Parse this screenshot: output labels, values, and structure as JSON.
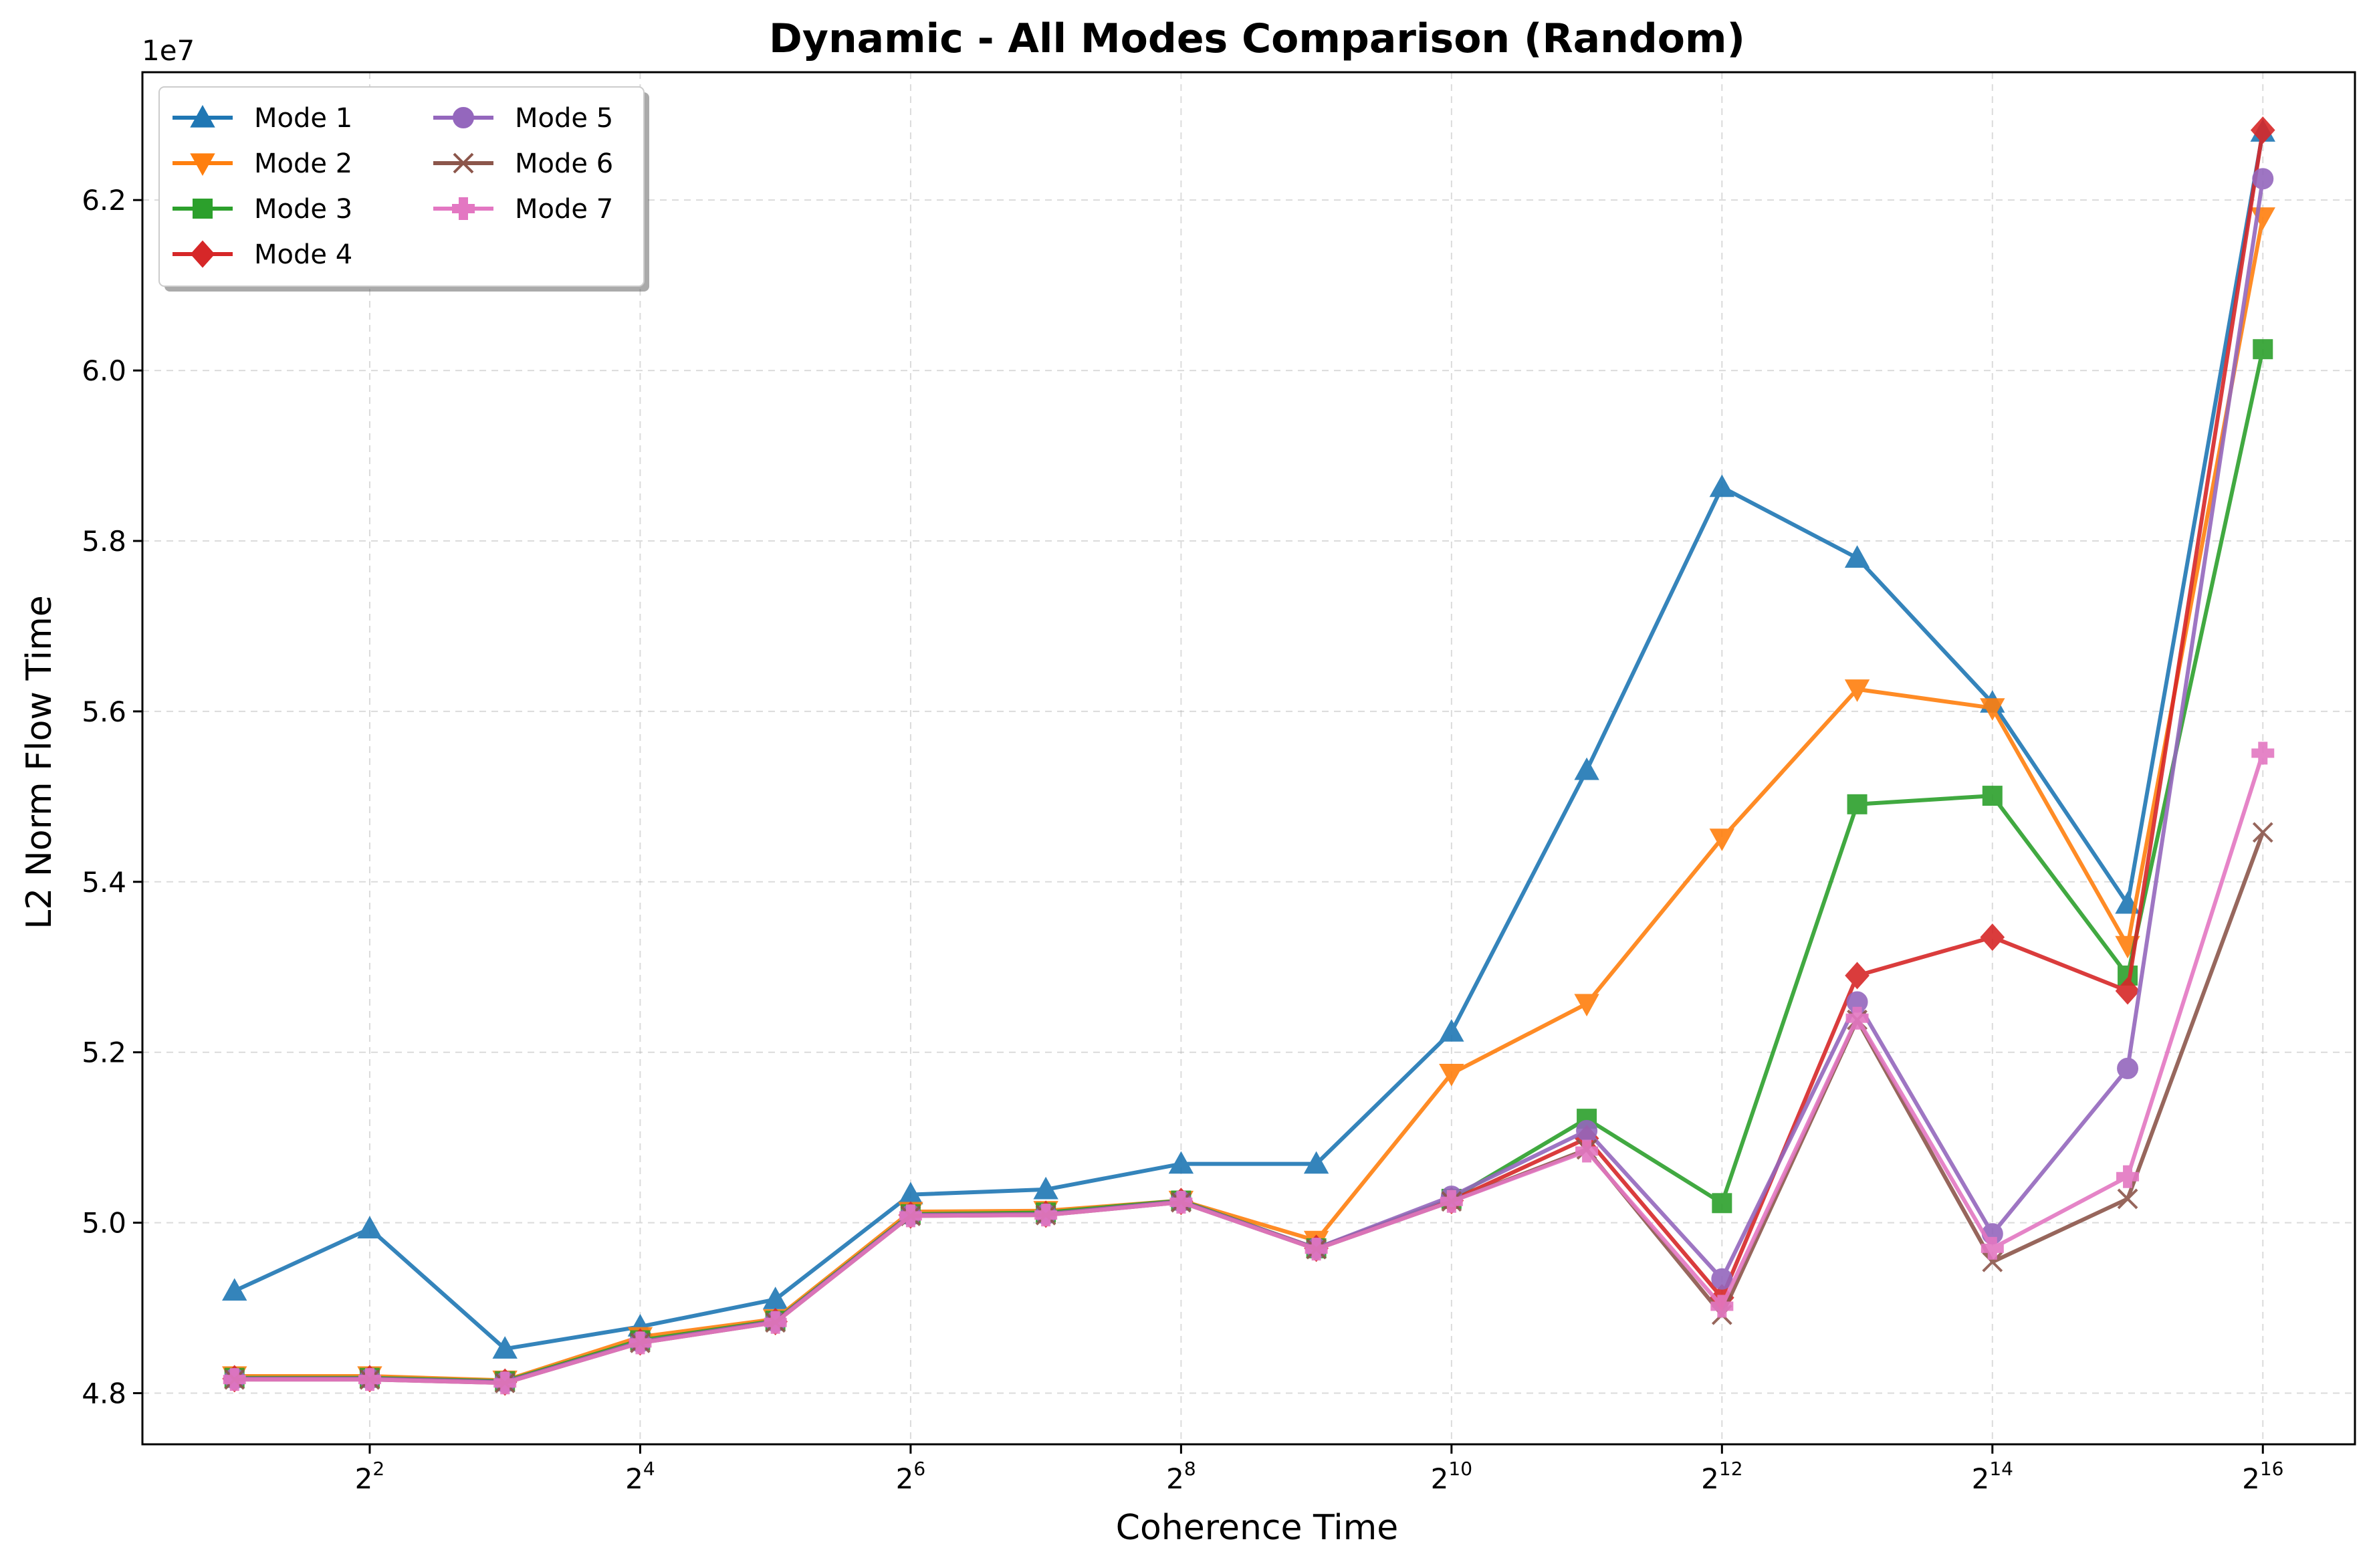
{
  "chart_data": {
    "type": "line",
    "title": "Dynamic - All Modes Comparison (Random)",
    "xlabel": "Coherence Time",
    "ylabel": "L2 Norm Flow Time",
    "y_offset_label": "1e7",
    "x_scale": "log2",
    "x": [
      2,
      4,
      8,
      16,
      32,
      64,
      128,
      256,
      512,
      1024,
      2048,
      4096,
      8192,
      16384,
      32768,
      65536
    ],
    "x_tick_values": [
      4,
      16,
      64,
      256,
      1024,
      4096,
      16384,
      65536
    ],
    "x_tick_labels": [
      {
        "base": "2",
        "exp": "2"
      },
      {
        "base": "2",
        "exp": "4"
      },
      {
        "base": "2",
        "exp": "6"
      },
      {
        "base": "2",
        "exp": "8"
      },
      {
        "base": "2",
        "exp": "10"
      },
      {
        "base": "2",
        "exp": "12"
      },
      {
        "base": "2",
        "exp": "14"
      },
      {
        "base": "2",
        "exp": "16"
      }
    ],
    "y_ticks": [
      "4.8",
      "5.0",
      "5.2",
      "5.4",
      "5.6",
      "5.8",
      "6.0",
      "6.2"
    ],
    "y_tick_values": [
      48000000,
      50000000,
      52000000,
      54000000,
      56000000,
      58000000,
      60000000,
      62000000
    ],
    "ylim": [
      47400000,
      63500000
    ],
    "grid": true,
    "legend_position": "top-left",
    "series": [
      {
        "name": "Mode 1",
        "color": "#1f77b4",
        "marker": "triangle-up",
        "values": [
          49200000,
          49930000,
          48520000,
          48780000,
          49100000,
          50330000,
          50390000,
          50690000,
          50690000,
          52240000,
          55310000,
          58630000,
          57800000,
          56100000,
          53740000,
          62800000
        ]
      },
      {
        "name": "Mode 2",
        "color": "#ff7f0e",
        "marker": "triangle-down",
        "values": [
          48200000,
          48200000,
          48150000,
          48660000,
          48870000,
          50130000,
          50140000,
          50260000,
          49790000,
          51750000,
          52570000,
          54510000,
          56260000,
          56040000,
          53250000,
          61800000
        ]
      },
      {
        "name": "Mode 3",
        "color": "#2ca02c",
        "marker": "square",
        "values": [
          48180000,
          48180000,
          48140000,
          48620000,
          48850000,
          50100000,
          50120000,
          50260000,
          49700000,
          50280000,
          51220000,
          50230000,
          54910000,
          55010000,
          52900000,
          60250000
        ]
      },
      {
        "name": "Mode 4",
        "color": "#d62728",
        "marker": "diamond",
        "values": [
          48170000,
          48170000,
          48130000,
          48600000,
          48840000,
          50090000,
          50100000,
          50250000,
          49700000,
          50260000,
          50990000,
          49120000,
          52900000,
          53350000,
          52720000,
          62820000
        ]
      },
      {
        "name": "Mode 5",
        "color": "#9467bd",
        "marker": "circle",
        "values": [
          48170000,
          48170000,
          48130000,
          48600000,
          48840000,
          50090000,
          50100000,
          50250000,
          49700000,
          50310000,
          51080000,
          49340000,
          52590000,
          49870000,
          51810000,
          62250000
        ]
      },
      {
        "name": "Mode 6",
        "color": "#8c564b",
        "marker": "x",
        "values": [
          48160000,
          48160000,
          48120000,
          48590000,
          48830000,
          50080000,
          50090000,
          50240000,
          49690000,
          50250000,
          50860000,
          48920000,
          52380000,
          49540000,
          50280000,
          54580000
        ]
      },
      {
        "name": "Mode 7",
        "color": "#e377c2",
        "marker": "plus",
        "values": [
          48160000,
          48160000,
          48120000,
          48590000,
          48830000,
          50080000,
          50090000,
          50240000,
          49690000,
          50250000,
          50840000,
          49020000,
          52400000,
          49700000,
          50540000,
          55510000
        ]
      }
    ]
  }
}
